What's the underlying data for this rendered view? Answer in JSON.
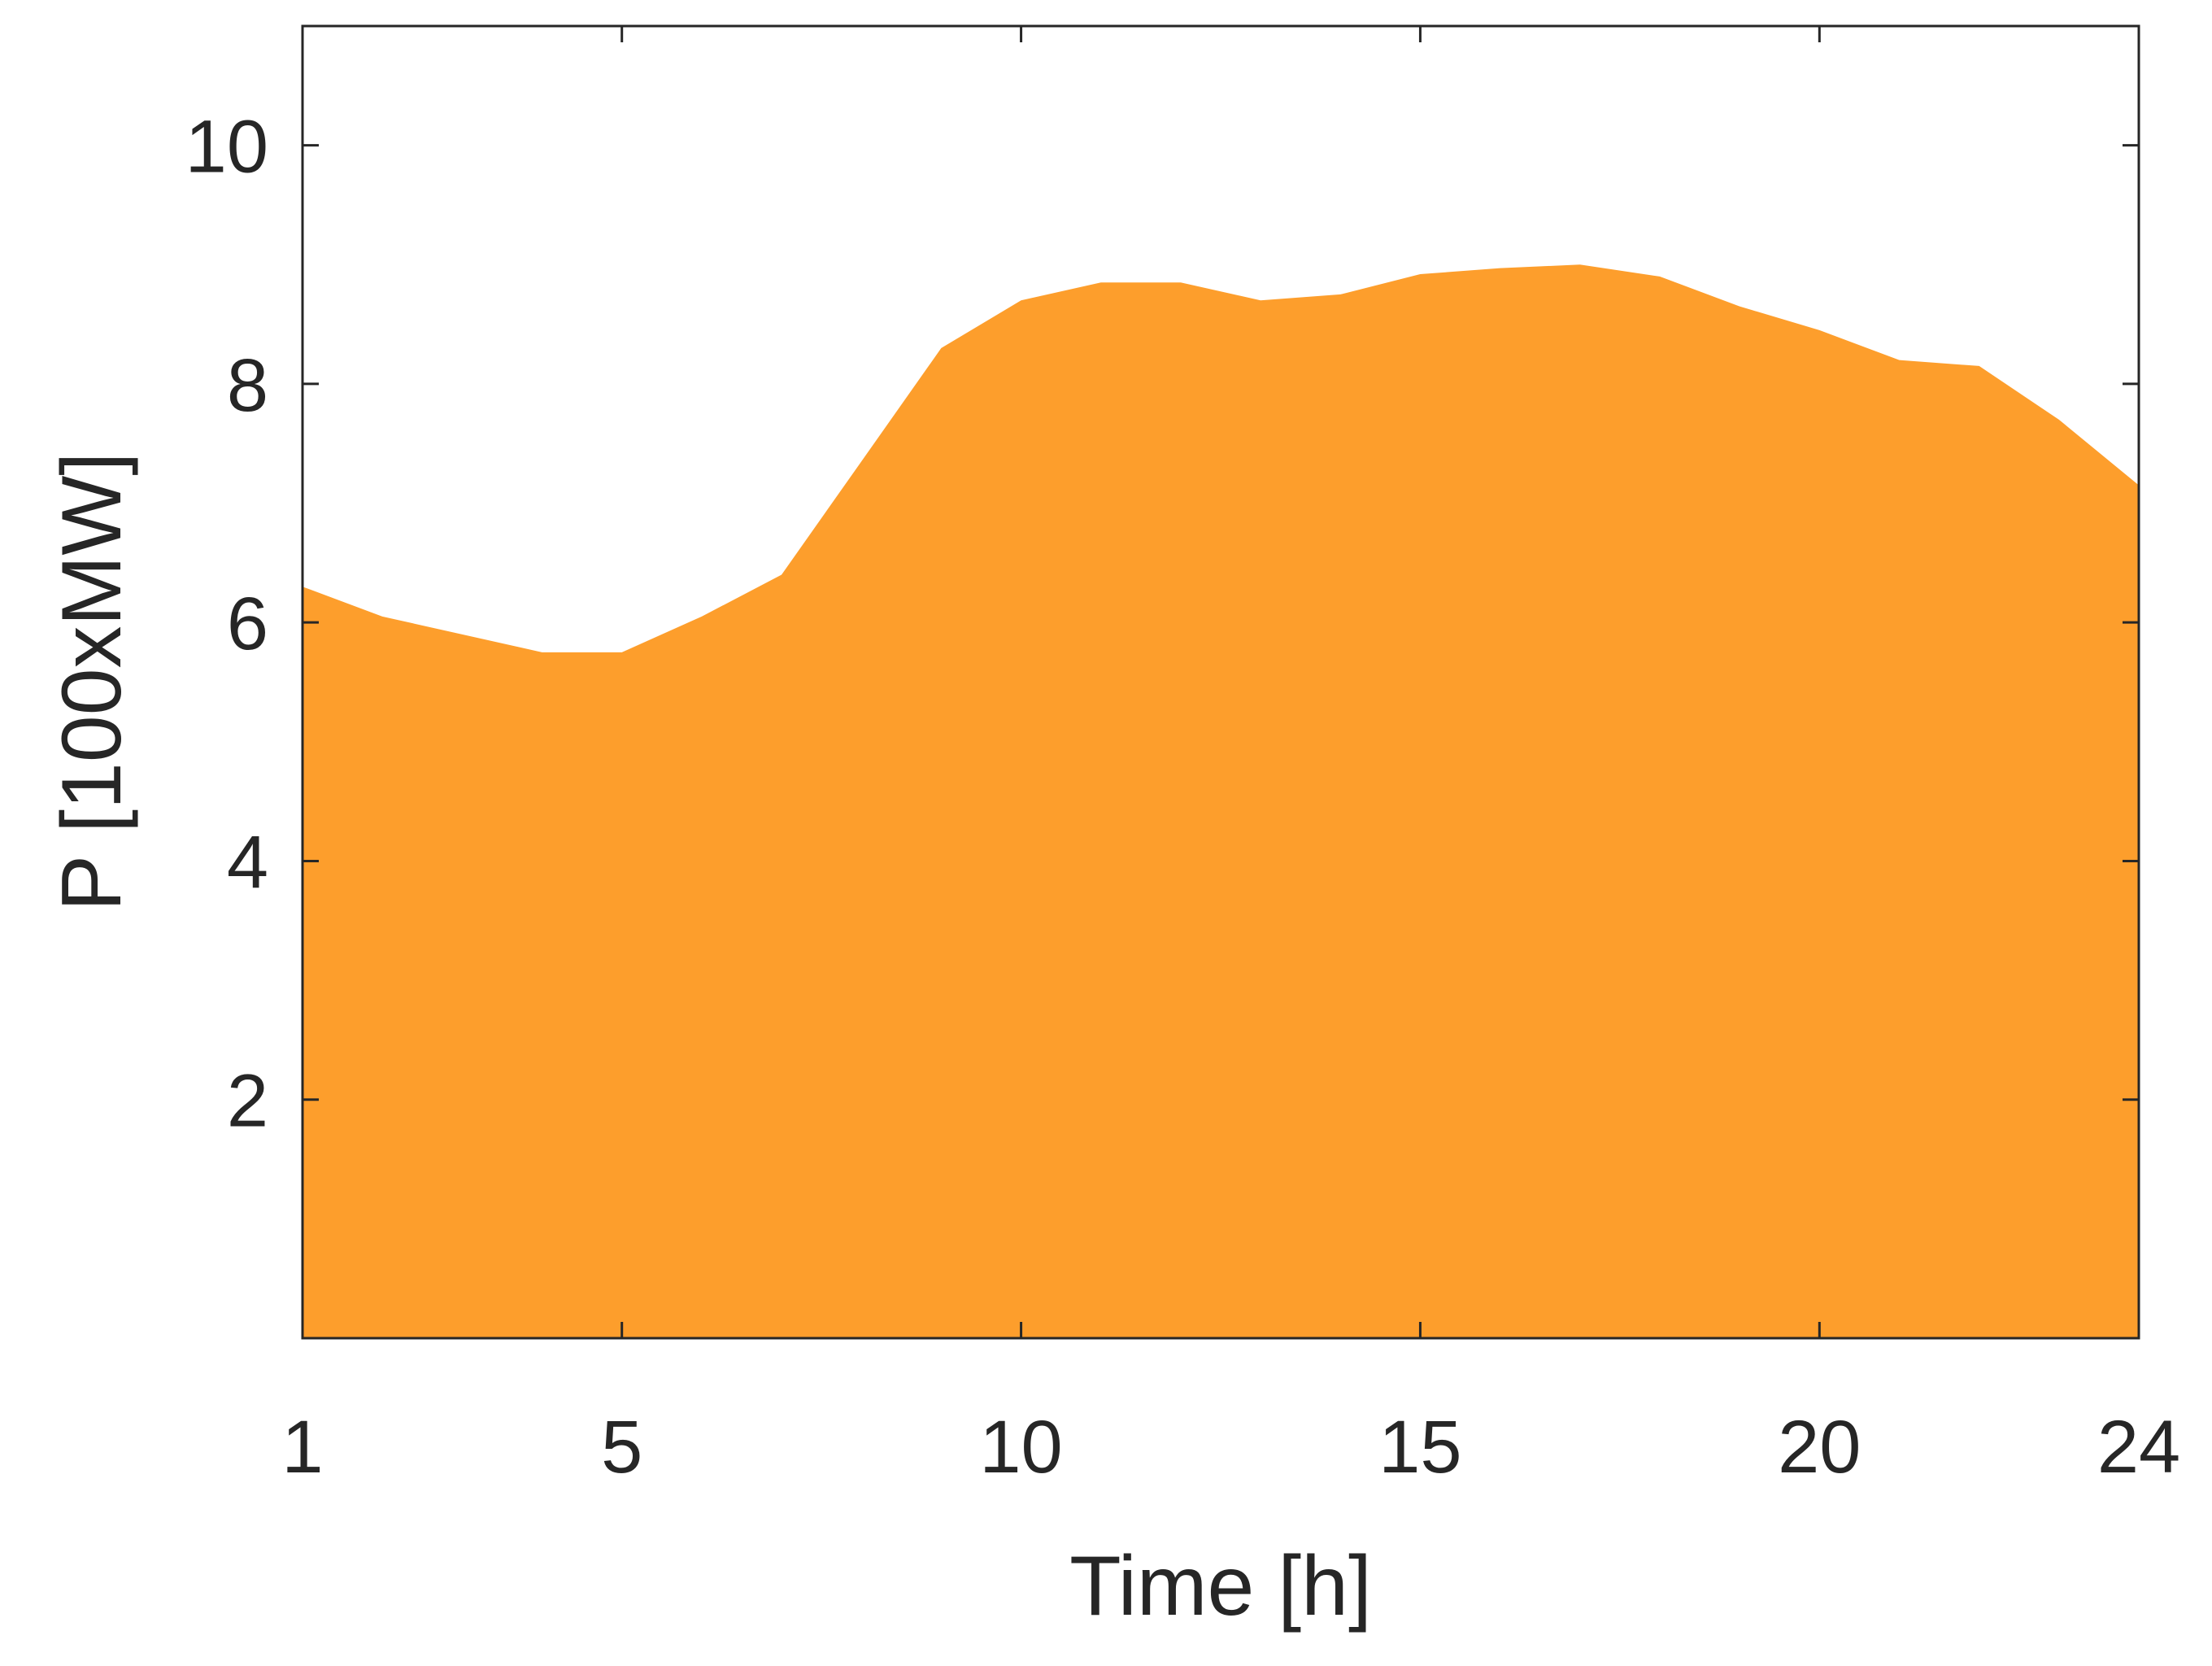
{
  "chart_data": {
    "type": "area",
    "title": "",
    "xlabel": "Time [h]",
    "ylabel": "P [100xMW]",
    "xlim": [
      1,
      24
    ],
    "ylim": [
      0,
      11
    ],
    "xticks": [
      1,
      5,
      10,
      15,
      20,
      24
    ],
    "yticks": [
      2,
      4,
      6,
      8,
      10
    ],
    "grid": false,
    "legend": "none",
    "series": [
      {
        "color": "#FD9E2C",
        "x": [
          1,
          2,
          3,
          4,
          5,
          6,
          7,
          8,
          9,
          10,
          11,
          12,
          13,
          14,
          15,
          16,
          17,
          18,
          19,
          20,
          21,
          22,
          23,
          24
        ],
        "values": [
          6.3,
          6.05,
          5.9,
          5.75,
          5.75,
          6.05,
          6.4,
          7.35,
          8.3,
          8.7,
          8.85,
          8.85,
          8.7,
          8.75,
          8.92,
          8.97,
          9.0,
          8.9,
          8.65,
          8.45,
          8.2,
          8.15,
          7.7,
          7.15
        ]
      }
    ]
  }
}
